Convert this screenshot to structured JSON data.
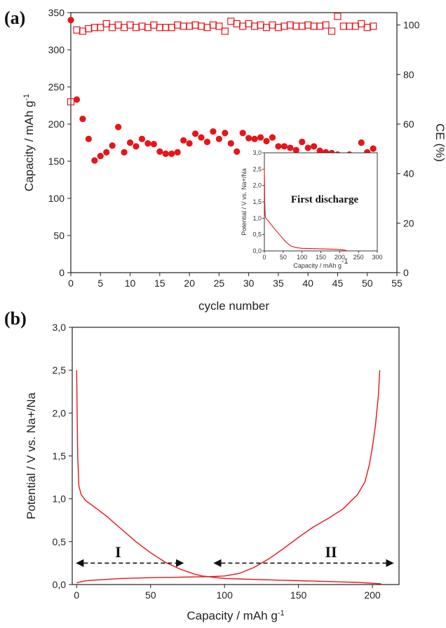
{
  "colors": {
    "series": "#e8141a",
    "axis": "#222222"
  },
  "panel_a_label": "(a)",
  "panel_b_label": "(b)",
  "chart_data": [
    {
      "type": "scatter",
      "panel": "(a)",
      "xlabel": "cycle number",
      "ylabel": "Capacity / mAh g",
      "ylabel_sup": "-1",
      "y2label": "CE (%)",
      "xlim": [
        0,
        55
      ],
      "ylim": [
        0,
        350
      ],
      "y2lim": [
        0,
        105
      ],
      "xticks": [
        "0",
        "5",
        "10",
        "15",
        "20",
        "25",
        "30",
        "35",
        "40",
        "45",
        "50",
        "55"
      ],
      "yticks": [
        "0",
        "50",
        "100",
        "150",
        "200",
        "250",
        "300",
        "350"
      ],
      "y2ticks": [
        "0",
        "20",
        "40",
        "60",
        "80",
        "100"
      ],
      "series": [
        {
          "marker": "filled-circle",
          "axis": "left",
          "x": [
            0,
            1,
            2,
            3,
            4,
            5,
            6,
            7,
            8,
            9,
            10,
            11,
            12,
            13,
            14,
            15,
            16,
            17,
            18,
            19,
            20,
            21,
            22,
            23,
            24,
            25,
            26,
            27,
            28,
            29,
            30,
            31,
            32,
            33,
            34,
            35,
            36,
            37,
            38,
            39,
            40,
            41,
            42,
            43,
            44,
            45,
            46,
            47,
            48,
            49,
            50,
            51
          ],
          "values": [
            340,
            233,
            207,
            180,
            151,
            157,
            162,
            171,
            196,
            162,
            175,
            170,
            180,
            174,
            173,
            163,
            160,
            160,
            162,
            178,
            174,
            187,
            182,
            176,
            190,
            180,
            188,
            174,
            163,
            188,
            181,
            180,
            182,
            177,
            182,
            170,
            170,
            168,
            165,
            176,
            168,
            170,
            164,
            162,
            161,
            159,
            145,
            159,
            148,
            175,
            162,
            167
          ]
        },
        {
          "marker": "open-square",
          "axis": "right",
          "x": [
            0,
            1,
            2,
            3,
            4,
            5,
            6,
            7,
            8,
            9,
            10,
            11,
            12,
            13,
            14,
            15,
            16,
            17,
            18,
            19,
            20,
            21,
            22,
            23,
            24,
            25,
            26,
            27,
            28,
            29,
            30,
            31,
            32,
            33,
            34,
            35,
            36,
            37,
            38,
            39,
            40,
            41,
            42,
            43,
            44,
            45,
            46,
            47,
            48,
            49,
            50,
            51
          ],
          "values": [
            69,
            98,
            97.5,
            98.5,
            99,
            99,
            100.5,
            99,
            100,
            99,
            100,
            99,
            99.5,
            99,
            100,
            99,
            99,
            99,
            100,
            99.5,
            99.5,
            100,
            99.5,
            99,
            100,
            99.5,
            97.5,
            101.5,
            100.5,
            99.5,
            100.5,
            99.5,
            100,
            99,
            100,
            99,
            99.5,
            100,
            99.5,
            99.5,
            100,
            99.5,
            99.5,
            100,
            97.5,
            103.5,
            99.5,
            99.5,
            99.5,
            100.5,
            99,
            99.5
          ]
        }
      ],
      "inset": {
        "title": "First discharge",
        "xlabel": "Capacity / mAh g",
        "xlabel_sup": "-1",
        "ylabel": "Potential / V vs. Na+/Na",
        "xlim": [
          0,
          300
        ],
        "ylim": [
          0,
          3.0
        ],
        "xticks": [
          "0",
          "50",
          "100",
          "150",
          "200",
          "250",
          "300"
        ],
        "yticks": [
          "0,0",
          "0,5",
          "1,0",
          "1,5",
          "2,0",
          "2,5",
          "3,0"
        ],
        "x": [
          0,
          0.5,
          1,
          2,
          4,
          8,
          15,
          25,
          40,
          55,
          70,
          85,
          100,
          130,
          160,
          190,
          210,
          222
        ],
        "y": [
          2.5,
          2.0,
          1.5,
          1.1,
          1.0,
          0.95,
          0.85,
          0.7,
          0.5,
          0.3,
          0.15,
          0.1,
          0.08,
          0.07,
          0.06,
          0.05,
          0.03,
          0.0
        ]
      }
    },
    {
      "type": "line",
      "panel": "(b)",
      "xlabel": "Capacity / mAh g",
      "xlabel_sup": "-1",
      "ylabel": "Potential / V vs. Na+/Na",
      "xlim": [
        -3,
        218
      ],
      "ylim": [
        0,
        3.0
      ],
      "xticks": [
        "0",
        "50",
        "100",
        "150",
        "200"
      ],
      "yticks": [
        "0,0",
        "0,5",
        "1,0",
        "1,5",
        "2,0",
        "2,5",
        "3,0"
      ],
      "series": [
        {
          "x": [
            0,
            0.3,
            0.7,
            1.5,
            3,
            6,
            10,
            20,
            30,
            40,
            50,
            60,
            70,
            80,
            85,
            90,
            100,
            110,
            120,
            130,
            140,
            150,
            160,
            170,
            180,
            190,
            195,
            200,
            205,
            207
          ],
          "values": [
            2.5,
            2.0,
            1.5,
            1.15,
            1.05,
            0.98,
            0.93,
            0.8,
            0.65,
            0.5,
            0.37,
            0.26,
            0.18,
            0.12,
            0.1,
            0.09,
            0.07,
            0.065,
            0.06,
            0.055,
            0.05,
            0.045,
            0.04,
            0.035,
            0.03,
            0.025,
            0.02,
            0.015,
            0.01,
            0.0
          ]
        },
        {
          "x": [
            0,
            5,
            10,
            20,
            30,
            40,
            50,
            60,
            70,
            80,
            90,
            100,
            110,
            120,
            130,
            140,
            150,
            160,
            170,
            180,
            190,
            195,
            198,
            200,
            202,
            204,
            205
          ],
          "values": [
            0.02,
            0.04,
            0.05,
            0.06,
            0.07,
            0.075,
            0.08,
            0.083,
            0.086,
            0.089,
            0.092,
            0.1,
            0.13,
            0.2,
            0.3,
            0.42,
            0.55,
            0.67,
            0.77,
            0.88,
            1.05,
            1.2,
            1.4,
            1.6,
            1.85,
            2.2,
            2.5
          ]
        }
      ],
      "annotations": [
        {
          "text": "I",
          "x": 28,
          "y": 0.32
        },
        {
          "text": "II",
          "x": 172,
          "y": 0.32
        }
      ],
      "arrows": [
        {
          "from": [
            0,
            0.25
          ],
          "to": [
            72,
            0.25
          ]
        },
        {
          "from": [
            93,
            0.25
          ],
          "to": [
            214,
            0.25
          ]
        }
      ]
    }
  ]
}
